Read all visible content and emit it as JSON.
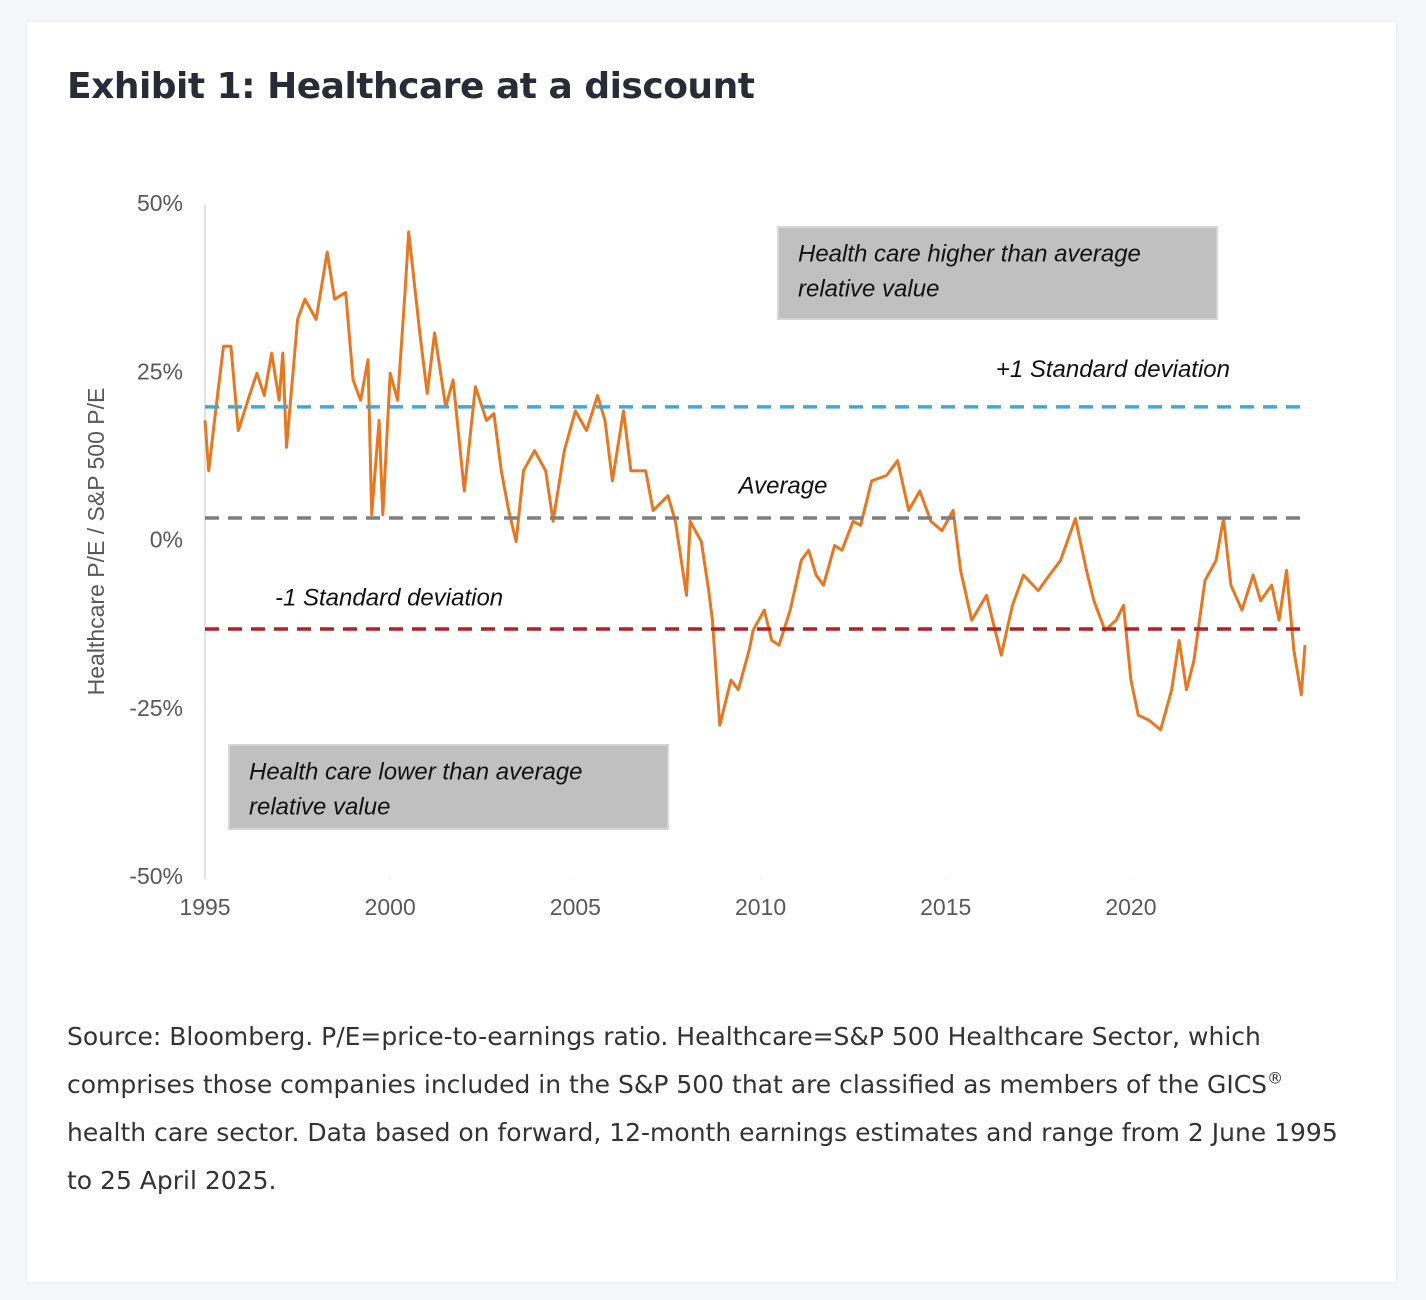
{
  "chart_data": {
    "type": "line",
    "title": "Exhibit 1: Healthcare at a discount",
    "y_label": "Healthcare P/E / S&P 500 P/E",
    "color": "#e87722",
    "x": [
      1995.0,
      1995.1,
      1995.3,
      1995.5,
      1995.7,
      1995.9,
      1996.2,
      1996.4,
      1996.6,
      1996.8,
      1997.0,
      1997.1,
      1997.2,
      1997.5,
      1997.7,
      1998.0,
      1998.3,
      1998.5,
      1998.8,
      1999.0,
      1999.2,
      1999.4,
      1999.5,
      1999.7,
      1999.8,
      2000.0,
      2000.2,
      2000.4,
      2000.5,
      2000.8,
      2001.0,
      2001.2,
      2001.5,
      2001.7,
      2002.0,
      2002.3,
      2002.6,
      2002.8,
      2003.0,
      2003.2,
      2003.4,
      2003.6,
      2003.9,
      2004.2,
      2004.4,
      2004.7,
      2005.0,
      2005.3,
      2005.6,
      2005.8,
      2006.0,
      2006.3,
      2006.5,
      2006.9,
      2007.1,
      2007.5,
      2007.7,
      2008.0,
      2008.1,
      2008.4,
      2008.6,
      2008.7,
      2008.9,
      2009.2,
      2009.4,
      2009.7,
      2009.8,
      2010.1,
      2010.3,
      2010.5,
      2010.8,
      2011.1,
      2011.3,
      2011.5,
      2011.7,
      2012.0,
      2012.2,
      2012.5,
      2012.7,
      2013.0,
      2013.4,
      2013.7,
      2014.0,
      2014.3,
      2014.6,
      2014.9,
      2015.2,
      2015.4,
      2015.7,
      2016.1,
      2016.3,
      2016.5,
      2016.8,
      2017.1,
      2017.5,
      2017.8,
      2018.1,
      2018.5,
      2018.8,
      2019.0,
      2019.3,
      2019.6,
      2019.8,
      2020.0,
      2020.2,
      2020.5,
      2020.8,
      2021.1,
      2021.3,
      2021.5,
      2021.7,
      2022.0,
      2022.3,
      2022.5,
      2022.7,
      2023.0,
      2023.3,
      2023.5,
      2023.8,
      2024.0,
      2024.2,
      2024.4,
      2024.6,
      2024.7
    ],
    "values": [
      18,
      10.5,
      20,
      29,
      29,
      16.5,
      21.7,
      25,
      21.7,
      28,
      21,
      28,
      14,
      33,
      36,
      33,
      43,
      36,
      37,
      24,
      21,
      27,
      4,
      18,
      4,
      25,
      21,
      37,
      46,
      31,
      22,
      31,
      20,
      24,
      7.5,
      23,
      18,
      19,
      10.5,
      4.6,
      0,
      10.5,
      13.5,
      10.5,
      3,
      13.5,
      19.4,
      16.5,
      21.7,
      18,
      9,
      19.4,
      10.5,
      10.5,
      4.6,
      6.8,
      3,
      -8,
      3,
      0,
      -7.3,
      -11.7,
      -27.3,
      -20.6,
      -22,
      -16,
      -13.2,
      -10.2,
      -14.7,
      -15.4,
      -10.2,
      -2.8,
      -1.3,
      -5,
      -6.5,
      -0.6,
      -1.3,
      3,
      2.4,
      9,
      9.8,
      12,
      4.6,
      7.5,
      3,
      1.6,
      4.6,
      -4.3,
      -11.7,
      -8,
      -12.5,
      -16.9,
      -9.5,
      -5,
      -7.3,
      -5,
      -2.8,
      3.4,
      -4.3,
      -8.8,
      -13.2,
      -11.7,
      -9.5,
      -20.6,
      -25.8,
      -26.6,
      -28,
      -22,
      -14.7,
      -22,
      -17.7,
      -5.8,
      -2.8,
      3.4,
      -6.5,
      -10.2,
      -5,
      -8.8,
      -6.5,
      -11.7,
      -4.3,
      -16.2,
      -22.8,
      -15.4
    ],
    "xlim": [
      1995,
      2024.7
    ],
    "ylim": [
      -50,
      50
    ],
    "xticks": [
      1995,
      2000,
      2005,
      2010,
      2015,
      2020
    ],
    "yticks": [
      {
        "value": 50,
        "label": "50%"
      },
      {
        "value": 25,
        "label": "25%"
      },
      {
        "value": 0,
        "label": "0%"
      },
      {
        "value": -25,
        "label": "-25%"
      },
      {
        "value": -50,
        "label": "-50%"
      }
    ],
    "reference_lines": [
      {
        "label": "+1 Standard deviation",
        "value": 20,
        "color": "#3fa9d9"
      },
      {
        "label": "Average",
        "value": 3.5,
        "color": "#7f7f7f"
      },
      {
        "label": "-1 Standard deviation",
        "value": -13,
        "color": "#b22222"
      }
    ],
    "annotations": [
      {
        "lines": [
          "Health care higher than average",
          "relative value"
        ]
      },
      {
        "lines": [
          "Health care lower than average",
          "relative value"
        ]
      }
    ]
  },
  "footnote": [
    "Source: Bloomberg. P/E=price-to-earnings ratio. Healthcare=S&P 500 Healthcare Sector, which comprises those companies included in the S&P 500 that are classified as members of the GICS",
    "®",
    " health care sector. Data based on forward, 12-month earnings estimates and range from 2 June 1995 to 25 April 2025."
  ]
}
